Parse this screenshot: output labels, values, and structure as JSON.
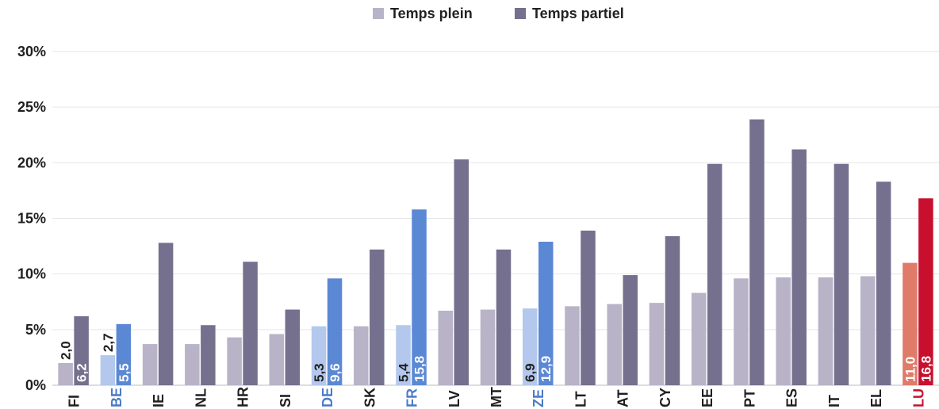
{
  "chart_data": {
    "type": "bar",
    "title": "",
    "xlabel": "",
    "ylabel": "",
    "ylim": [
      0,
      30
    ],
    "y_ticks": [
      {
        "value": 0,
        "label": "0%"
      },
      {
        "value": 5,
        "label": "5%"
      },
      {
        "value": 10,
        "label": "10%"
      },
      {
        "value": 15,
        "label": "15%"
      },
      {
        "value": 20,
        "label": "20%"
      },
      {
        "value": 25,
        "label": "25%"
      },
      {
        "value": 30,
        "label": "30%"
      }
    ],
    "grid": true,
    "legend_position": "top-center",
    "categories": [
      "FI",
      "BE",
      "IE",
      "NL",
      "HR",
      "SI",
      "DE",
      "SK",
      "FR",
      "LV",
      "MT",
      "ZE",
      "LT",
      "AT",
      "CY",
      "EE",
      "PT",
      "ES",
      "IT",
      "EL",
      "LU"
    ],
    "category_colors": {
      "default": "#1f1f1f",
      "BE": "#4a7bc8",
      "DE": "#4a7bc8",
      "FR": "#4a7bc8",
      "ZE": "#4a7bc8",
      "LU": "#c8102e"
    },
    "series": [
      {
        "name": "Temps plein",
        "color": "#b8b3c7",
        "values": [
          2.0,
          2.7,
          3.7,
          3.7,
          4.3,
          4.6,
          5.3,
          5.3,
          5.4,
          6.7,
          6.8,
          6.9,
          7.1,
          7.3,
          7.4,
          8.3,
          9.6,
          9.7,
          9.7,
          9.8,
          11.0
        ]
      },
      {
        "name": "Temps partiel",
        "color": "#75708e",
        "values": [
          6.2,
          5.5,
          12.8,
          5.4,
          11.1,
          6.8,
          9.6,
          12.2,
          15.8,
          20.3,
          12.2,
          12.9,
          13.9,
          9.9,
          13.4,
          19.9,
          23.9,
          21.2,
          19.9,
          18.3,
          16.8
        ]
      }
    ],
    "highlight_colors": {
      "BE": {
        "full": "#b3c8ec",
        "part": "#5b88d4"
      },
      "DE": {
        "full": "#b3c8ec",
        "part": "#5b88d4"
      },
      "FR": {
        "full": "#b3c8ec",
        "part": "#5b88d4"
      },
      "ZE": {
        "full": "#b3c8ec",
        "part": "#5b88d4"
      },
      "LU": {
        "full": "#e07b6a",
        "part": "#c8102e"
      }
    },
    "data_labels": [
      {
        "category": "FI",
        "series": 0,
        "text": "2,0",
        "position": "above",
        "color": "#1f1f1f"
      },
      {
        "category": "FI",
        "series": 1,
        "text": "6,2",
        "position": "inside",
        "color": "#ffffff"
      },
      {
        "category": "BE",
        "series": 0,
        "text": "2,7",
        "position": "above",
        "color": "#1f1f1f"
      },
      {
        "category": "BE",
        "series": 1,
        "text": "5,5",
        "position": "inside",
        "color": "#ffffff"
      },
      {
        "category": "DE",
        "series": 0,
        "text": "5,3",
        "position": "inside",
        "color": "#1f1f1f"
      },
      {
        "category": "DE",
        "series": 1,
        "text": "9,6",
        "position": "inside",
        "color": "#ffffff"
      },
      {
        "category": "FR",
        "series": 0,
        "text": "5,4",
        "position": "inside",
        "color": "#1f1f1f"
      },
      {
        "category": "FR",
        "series": 1,
        "text": "15,8",
        "position": "inside",
        "color": "#ffffff"
      },
      {
        "category": "ZE",
        "series": 0,
        "text": "6,9",
        "position": "inside",
        "color": "#1f1f1f"
      },
      {
        "category": "ZE",
        "series": 1,
        "text": "12,9",
        "position": "inside",
        "color": "#ffffff"
      },
      {
        "category": "LU",
        "series": 0,
        "text": "11,0",
        "position": "inside",
        "color": "#ffffff"
      },
      {
        "category": "LU",
        "series": 1,
        "text": "16,8",
        "position": "inside",
        "color": "#ffffff"
      }
    ]
  }
}
